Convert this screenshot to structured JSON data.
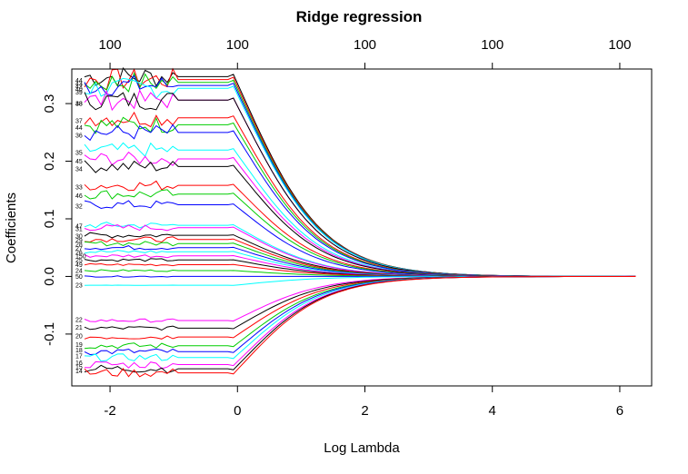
{
  "chart_data": {
    "type": "line",
    "title": "Ridge regression",
    "xlabel": "Log Lambda",
    "ylabel": "Coefficients",
    "xlim": [
      -2.6,
      6.5
    ],
    "ylim": [
      -0.19,
      0.36
    ],
    "x_ticks": [
      -2,
      0,
      2,
      4,
      6
    ],
    "y_ticks": [
      -0.1,
      0.0,
      0.1,
      0.2,
      0.3
    ],
    "x_tick_labels": [
      "-2",
      "0",
      "2",
      "4",
      "6"
    ],
    "y_tick_labels": [
      "-0.1",
      "0.0",
      "0.1",
      "0.2",
      "0.3"
    ],
    "top_axis": {
      "positions": [
        -2,
        0,
        2,
        4,
        6
      ],
      "labels": [
        "100",
        "100",
        "100",
        "100",
        "100"
      ]
    },
    "x_range": [
      -2.4,
      6.25
    ],
    "grid": false,
    "colors": [
      "#000000",
      "#ff0000",
      "#00cd00",
      "#0000ff",
      "#00ffff",
      "#ff00ff"
    ],
    "series_left_labels": [
      {
        "label": "44",
        "y": 0.34
      },
      {
        "label": "43",
        "y": 0.335
      },
      {
        "label": "42",
        "y": 0.33
      },
      {
        "label": "40",
        "y": 0.325
      },
      {
        "label": "39",
        "y": 0.32
      },
      {
        "label": "48",
        "y": 0.3
      },
      {
        "label": "38",
        "y": 0.3
      },
      {
        "label": "37",
        "y": 0.27
      },
      {
        "label": "44",
        "y": 0.258
      },
      {
        "label": "36",
        "y": 0.245
      },
      {
        "label": "35",
        "y": 0.215
      },
      {
        "label": "45",
        "y": 0.2
      },
      {
        "label": "34",
        "y": 0.187
      },
      {
        "label": "33",
        "y": 0.155
      },
      {
        "label": "46",
        "y": 0.14
      },
      {
        "label": "32",
        "y": 0.122
      },
      {
        "label": "47",
        "y": 0.087
      },
      {
        "label": "31",
        "y": 0.083
      },
      {
        "label": "30",
        "y": 0.07
      },
      {
        "label": "29",
        "y": 0.063
      },
      {
        "label": "28",
        "y": 0.056
      },
      {
        "label": "27",
        "y": 0.049
      },
      {
        "label": "26",
        "y": 0.042
      },
      {
        "label": "150",
        "y": 0.035
      },
      {
        "label": "25",
        "y": 0.028
      },
      {
        "label": "49",
        "y": 0.02
      },
      {
        "label": "24",
        "y": 0.01
      },
      {
        "label": "50",
        "y": 0.0
      },
      {
        "label": "23",
        "y": -0.015
      },
      {
        "label": "22",
        "y": -0.075
      },
      {
        "label": "21",
        "y": -0.088
      },
      {
        "label": "20",
        "y": -0.103
      },
      {
        "label": "19",
        "y": -0.118
      },
      {
        "label": "18",
        "y": -0.128
      },
      {
        "label": "17",
        "y": -0.138
      },
      {
        "label": "16",
        "y": -0.15
      },
      {
        "label": "15",
        "y": -0.157
      },
      {
        "label": "14",
        "y": -0.164
      }
    ]
  }
}
